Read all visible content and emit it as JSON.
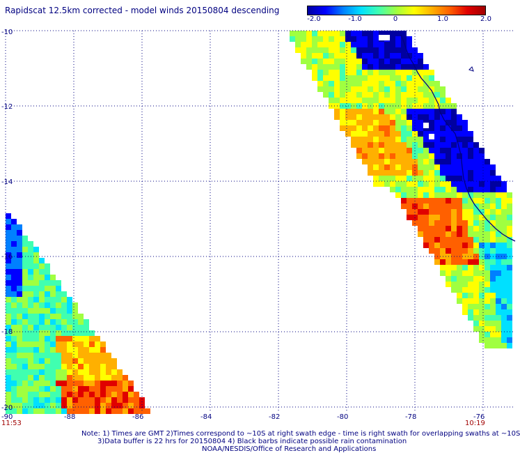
{
  "title": "Rapidscat 12.5km corrected - model winds 20150804 descending",
  "colorbar": {
    "ticks": [
      "-2.0",
      "-1.0",
      "0",
      "1.0",
      "2.0"
    ],
    "colors": [
      "#0000a0",
      "#0000ff",
      "#0080ff",
      "#00e0ff",
      "#40ffb0",
      "#a0ff40",
      "#ffff00",
      "#ffb000",
      "#ff6000",
      "#e00000",
      "#a00000"
    ]
  },
  "map": {
    "lon_labels": [
      "-90",
      "-88",
      "-86",
      "-84",
      "-82",
      "-80",
      "-78",
      "-76"
    ],
    "lat_labels": [
      "-10",
      "-12",
      "-14",
      "-16",
      "-18",
      "-20"
    ],
    "times": {
      "left": "11:53",
      "right": "10:19"
    },
    "axis_color": "#000080",
    "time_color": "#a00000",
    "coast_color": "#000080"
  },
  "footer": {
    "line1": "Note: 1) Times are GMT 2)Times correspond to ~10S at right swath edge - time is right swath for overlapping swaths at ~10S",
    "line2": "3)Data buffer is 22 hrs for 20150804 4) Black barbs indicate possible rain contamination",
    "line3": "NOAA/NESDIS/Office of Research and Applications"
  }
}
